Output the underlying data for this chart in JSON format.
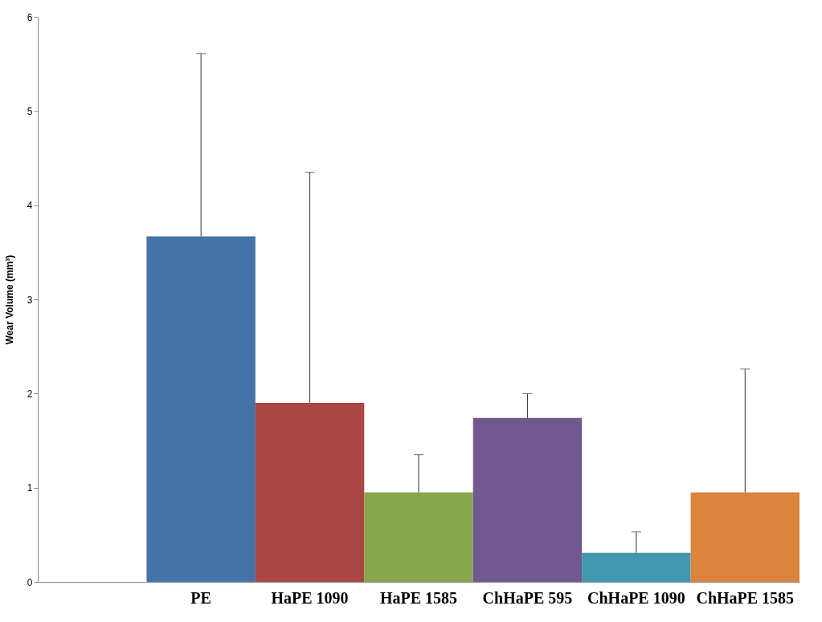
{
  "chart_data": {
    "type": "bar",
    "ylabel": "Wear Volume (mm³)",
    "categories": [
      null,
      "PE",
      "HaPE 1090",
      "HaPE 1585",
      "ChHaPE 595",
      "ChHaPE 1090",
      "ChHaPE 1585"
    ],
    "values": [
      null,
      3.67,
      1.9,
      0.95,
      1.74,
      0.31,
      0.95
    ],
    "colors": [
      "#4572a7",
      "#4572a7",
      "#aa4643",
      "#89a54e",
      "#71588f",
      "#4198af",
      "#db843d"
    ],
    "errors": [
      null,
      [
        3.67,
        5.61
      ],
      [
        1.9,
        4.35
      ],
      [
        0.95,
        1.35
      ],
      [
        1.74,
        2.0
      ],
      [
        0.31,
        0.53
      ],
      [
        0.95,
        2.26
      ]
    ],
    "ylim": [
      0,
      6
    ],
    "yticks": [
      0,
      1,
      2,
      3,
      4,
      5,
      6
    ],
    "grid": false
  }
}
